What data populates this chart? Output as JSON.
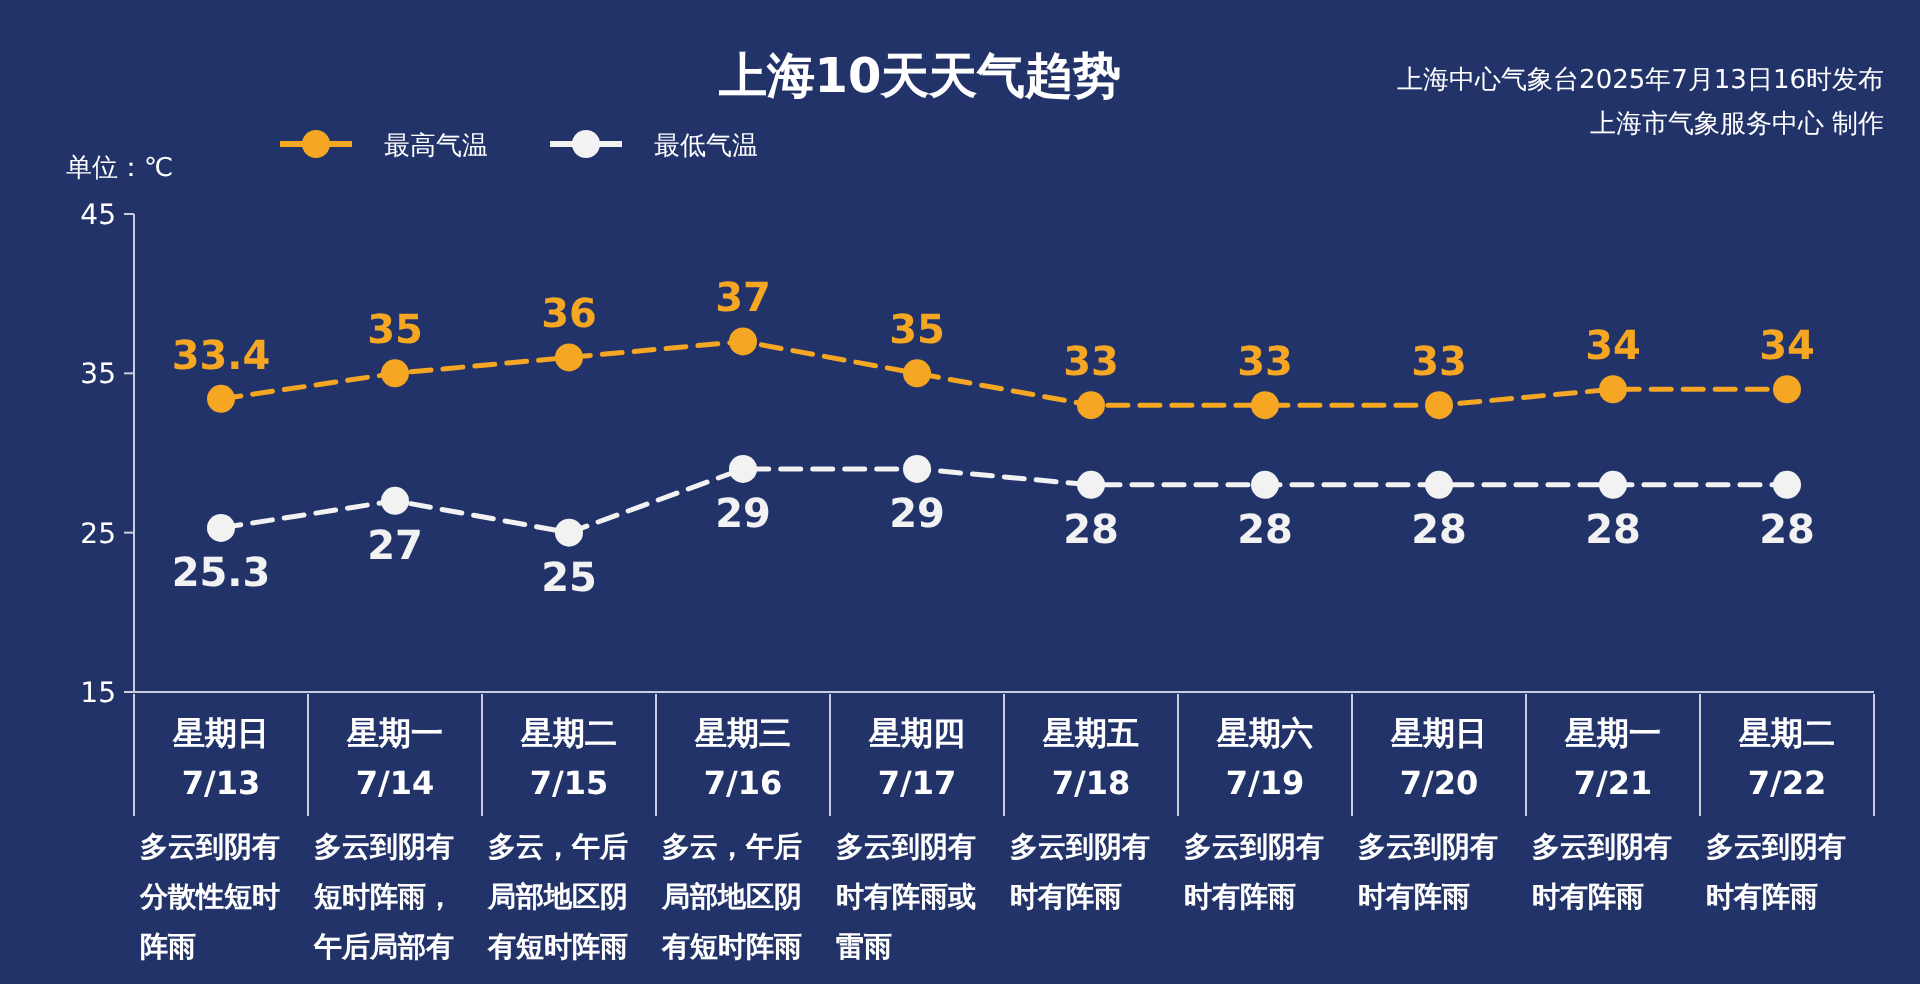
{
  "chart_data": {
    "type": "line",
    "title": "上海10天天气趋势",
    "ylabel": "单位：℃",
    "categories": [
      "星期日 7/13",
      "星期一 7/14",
      "星期二 7/15",
      "星期三 7/16",
      "星期四 7/17",
      "星期五 7/18",
      "星期六 7/19",
      "星期日 7/20",
      "星期一 7/21",
      "星期二 7/22"
    ],
    "series": [
      {
        "name": "最高气温",
        "color": "#f5a623",
        "values": [
          33.4,
          35,
          36,
          37,
          35,
          33,
          33,
          33,
          34,
          34
        ]
      },
      {
        "name": "最低气温",
        "color": "#f2f2f2",
        "values": [
          25.3,
          27,
          25,
          29,
          29,
          28,
          28,
          28,
          28,
          28
        ]
      }
    ],
    "ylim": [
      15,
      45
    ],
    "yticks": [
      15,
      25,
      35,
      45
    ],
    "data_labels": true,
    "legend": "top left",
    "marker": "circle",
    "line_style": "dashed",
    "grid": false,
    "annotations": [
      "上海中心气象台2025年7月13日16时发布",
      "上海市气象服务中心 制作",
      "多云到阴有分散性短时阵雨",
      "多云到阴有短时阵雨，午后局部有",
      "多云，午后局部地区阴有短时阵雨",
      "多云，午后局部地区阴有短时阵雨",
      "多云到阴有时有阵雨或雷雨",
      "多云到阴有时有阵雨",
      "多云到阴有时有阵雨",
      "多云到阴有时有阵雨",
      "多云到阴有时有阵雨",
      "多云到阴有时有阵雨"
    ]
  }
}
